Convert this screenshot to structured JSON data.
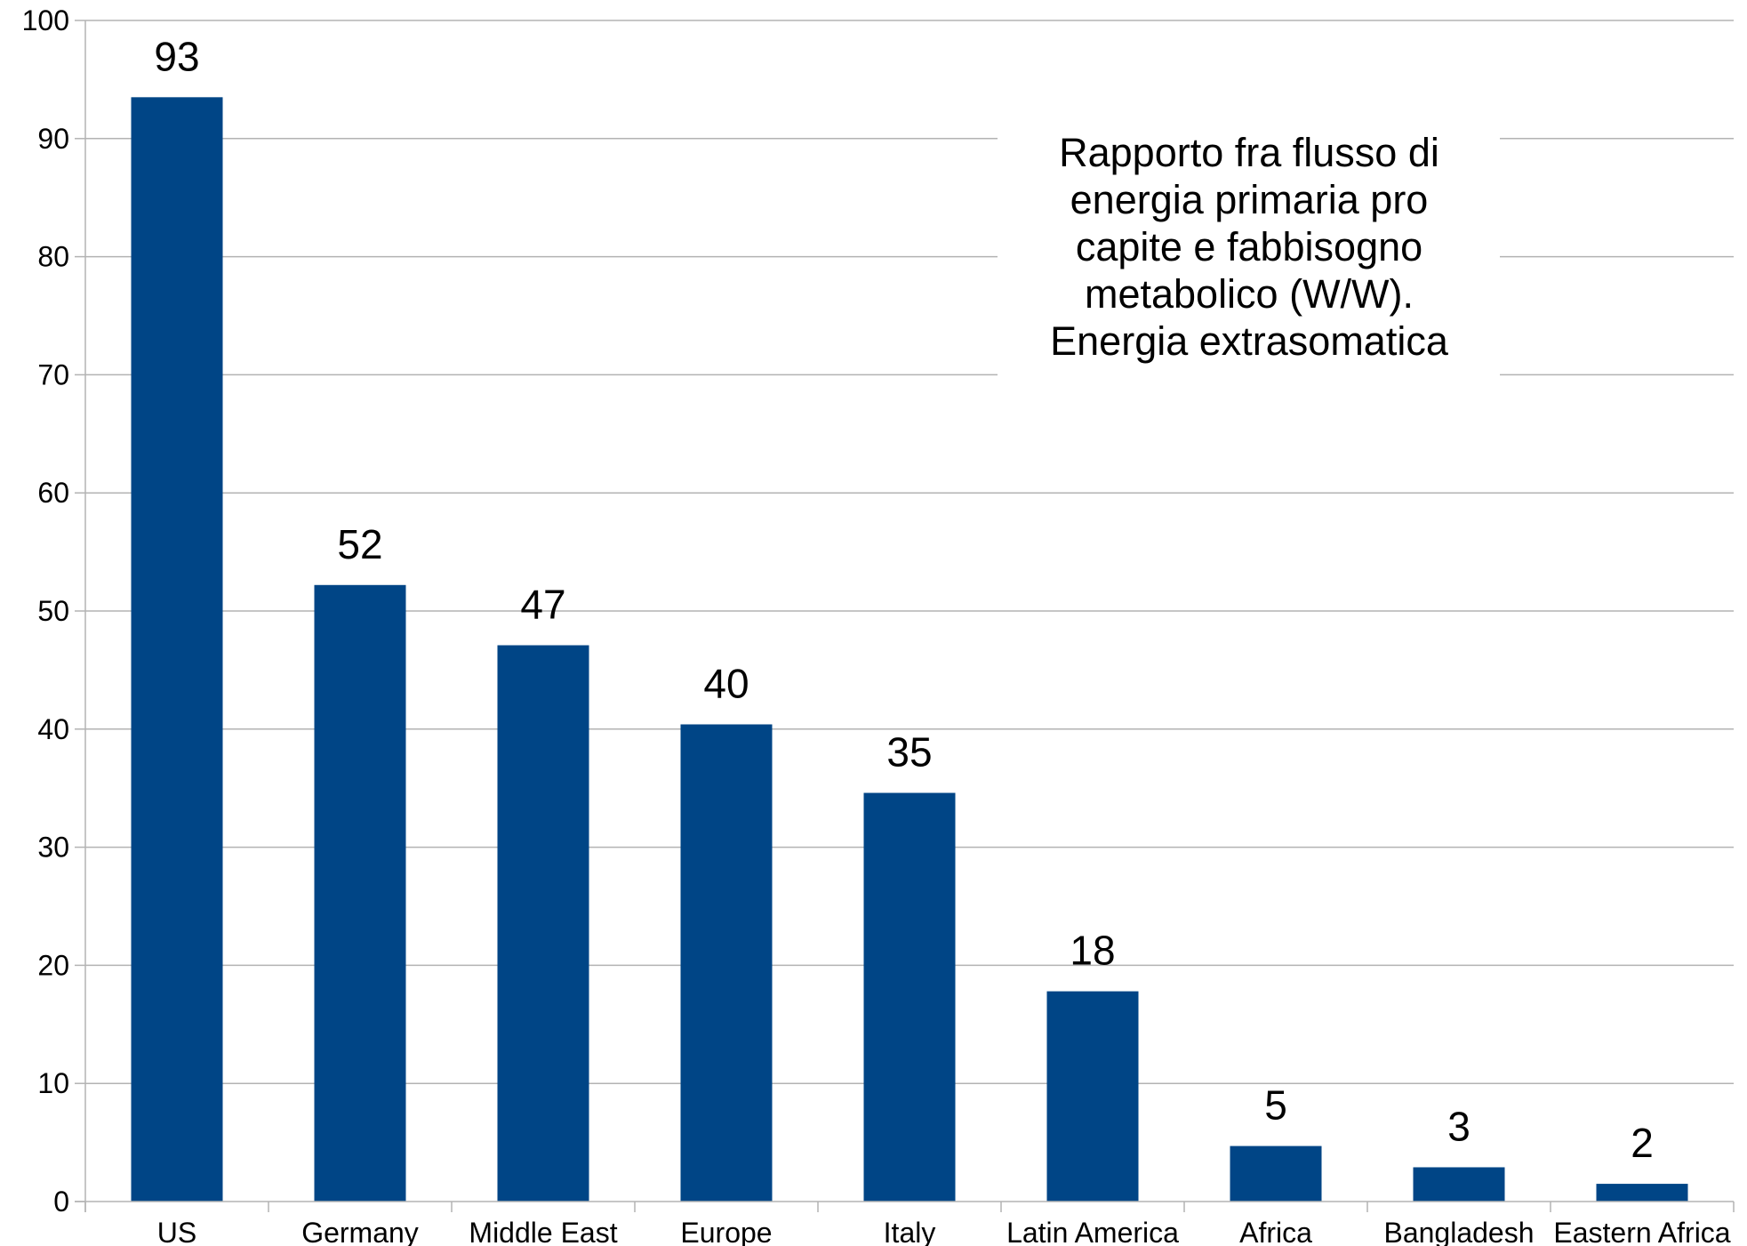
{
  "chart_data": {
    "type": "bar",
    "title": "",
    "xlabel": "",
    "ylabel": "",
    "ylim": [
      0,
      100
    ],
    "yticks": [
      0,
      10,
      20,
      30,
      40,
      50,
      60,
      70,
      80,
      90,
      100
    ],
    "grid": true,
    "categories": [
      "US",
      "Germany",
      "Middle East",
      "Europe",
      "Italy",
      "Latin America",
      "Africa",
      "Bangladesh",
      "Eastern Africa"
    ],
    "values": [
      93.5,
      52.2,
      47.1,
      40.4,
      34.6,
      17.8,
      4.7,
      2.9,
      1.5
    ],
    "data_labels": [
      "93",
      "52",
      "47",
      "40",
      "35",
      "18",
      "5",
      "3",
      "2"
    ],
    "bar_color": "#004586",
    "annotation": {
      "lines": [
        "Rapporto fra flusso di",
        "energia primaria pro",
        "capite e fabbisogno",
        "metabolico (W/W).",
        "Energia extrasomatica"
      ]
    }
  }
}
